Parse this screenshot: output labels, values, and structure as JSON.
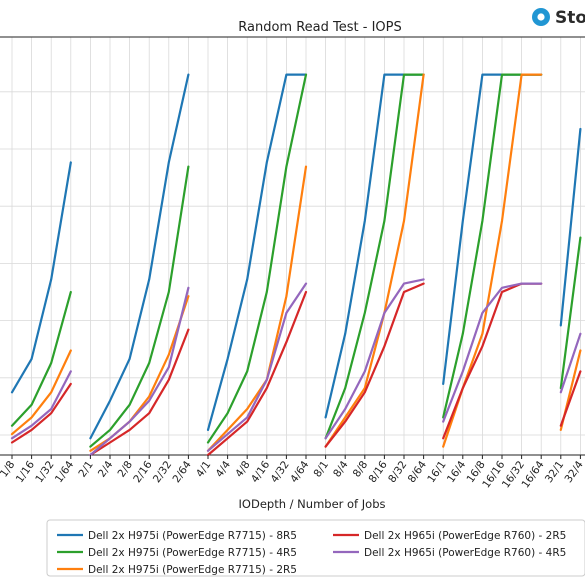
{
  "brand": {
    "text": "Sto",
    "color": "#2196d3"
  },
  "chart_data": {
    "type": "line",
    "title": "Random Read Test - IOPS",
    "xlabel": "IODepth / Number of Jobs",
    "ylabel": "",
    "grid": true,
    "legend_position": "bottom",
    "ylim": [
      0,
      1.0
    ],
    "categories": [
      "1/8",
      "1/16",
      "1/32",
      "1/64",
      "2/1",
      "2/4",
      "2/8",
      "2/16",
      "2/32",
      "2/64",
      "4/1",
      "4/4",
      "4/8",
      "4/16",
      "4/32",
      "4/64",
      "8/1",
      "8/4",
      "8/8",
      "8/16",
      "8/32",
      "8/64",
      "16/1",
      "16/4",
      "16/8",
      "16/16",
      "16/32",
      "16/64",
      "32/1",
      "32/4"
    ],
    "groups": [
      {
        "start": 0,
        "end": 3
      },
      {
        "start": 4,
        "end": 9
      },
      {
        "start": 10,
        "end": 15
      },
      {
        "start": 16,
        "end": 21
      },
      {
        "start": 22,
        "end": 27
      },
      {
        "start": 28,
        "end": 29
      }
    ],
    "series": [
      {
        "name": "Dell 2x H975i (PowerEdge R7715) - 8R5",
        "color": "#1f77b4",
        "values": [
          0.15,
          0.23,
          0.42,
          0.7,
          0.04,
          0.13,
          0.23,
          0.42,
          0.7,
          0.91,
          0.06,
          0.23,
          0.42,
          0.7,
          0.91,
          0.91,
          0.09,
          0.29,
          0.56,
          0.91,
          0.91,
          0.91,
          0.17,
          0.56,
          0.91,
          0.91,
          0.91,
          0.91,
          0.31,
          0.78
        ]
      },
      {
        "name": "Dell 2x H975i (PowerEdge R7715) - 4R5",
        "color": "#2ca02c",
        "values": [
          0.07,
          0.12,
          0.22,
          0.39,
          0.02,
          0.06,
          0.12,
          0.22,
          0.39,
          0.69,
          0.03,
          0.1,
          0.2,
          0.39,
          0.69,
          0.91,
          0.04,
          0.16,
          0.34,
          0.56,
          0.91,
          0.91,
          0.09,
          0.29,
          0.56,
          0.91,
          0.91,
          0.91,
          0.16,
          0.52
        ]
      },
      {
        "name": "Dell 2x H975i (PowerEdge R7715) - 2R5",
        "color": "#ff7f0e",
        "values": [
          0.05,
          0.09,
          0.15,
          0.25,
          0.01,
          0.04,
          0.08,
          0.14,
          0.24,
          0.38,
          0.01,
          0.06,
          0.11,
          0.18,
          0.38,
          0.69,
          0.02,
          0.09,
          0.16,
          0.34,
          0.56,
          0.91,
          0.02,
          0.16,
          0.29,
          0.56,
          0.91,
          0.91,
          0.06,
          0.25
        ]
      },
      {
        "name": "Dell 2x H965i (PowerEdge R760) - 2R5",
        "color": "#d62728",
        "values": [
          0.03,
          0.06,
          0.1,
          0.17,
          0.0,
          0.03,
          0.06,
          0.1,
          0.18,
          0.3,
          0.0,
          0.04,
          0.08,
          0.16,
          0.27,
          0.39,
          0.02,
          0.08,
          0.15,
          0.26,
          0.39,
          0.41,
          0.04,
          0.16,
          0.26,
          0.39,
          0.41,
          0.41,
          0.07,
          0.2
        ]
      },
      {
        "name": "Dell 2x H965i (PowerEdge R760) - 4R5",
        "color": "#9467bd",
        "values": [
          0.04,
          0.07,
          0.11,
          0.2,
          0.0,
          0.04,
          0.08,
          0.13,
          0.21,
          0.4,
          0.01,
          0.05,
          0.09,
          0.18,
          0.34,
          0.41,
          0.04,
          0.11,
          0.2,
          0.34,
          0.41,
          0.42,
          0.08,
          0.2,
          0.34,
          0.4,
          0.41,
          0.41,
          0.15,
          0.29
        ]
      }
    ]
  }
}
